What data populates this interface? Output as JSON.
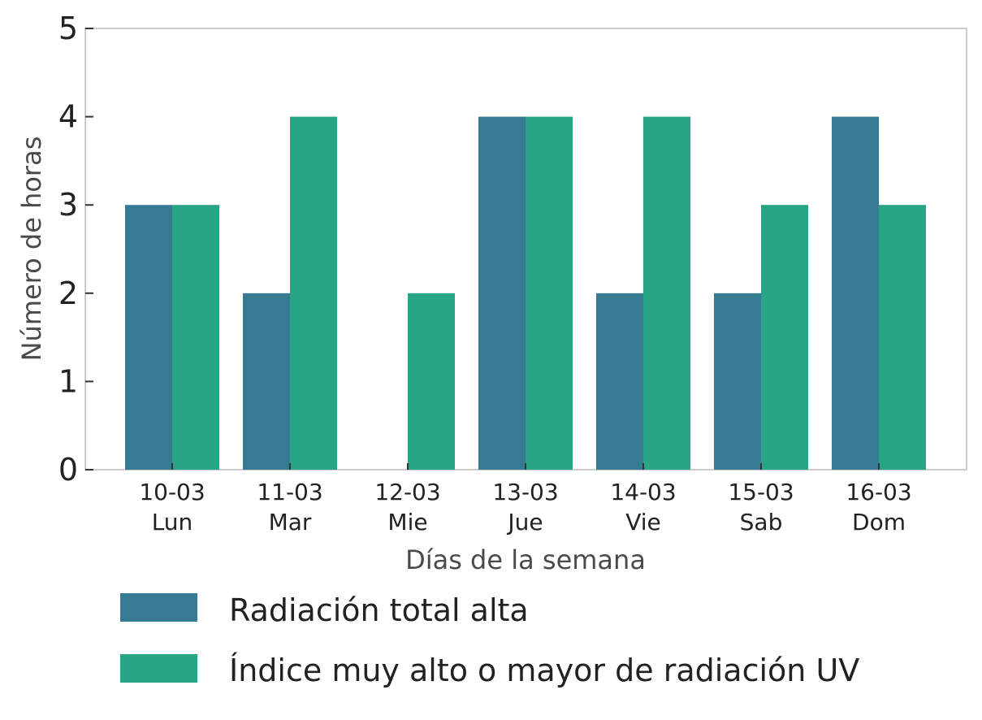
{
  "chart_data": {
    "type": "bar",
    "categories": [
      {
        "date": "10-03",
        "day": "Lun"
      },
      {
        "date": "11-03",
        "day": "Mar"
      },
      {
        "date": "12-03",
        "day": "Mie"
      },
      {
        "date": "13-03",
        "day": "Jue"
      },
      {
        "date": "14-03",
        "day": "Vie"
      },
      {
        "date": "15-03",
        "day": "Sab"
      },
      {
        "date": "16-03",
        "day": "Dom"
      }
    ],
    "series": [
      {
        "name": "Radiación total alta",
        "color": "#377a93",
        "values": [
          3,
          2,
          0,
          4,
          2,
          2,
          4
        ]
      },
      {
        "name": "Índice muy alto o mayor de radiación UV",
        "color": "#27a584",
        "values": [
          3,
          4,
          2,
          4,
          4,
          3,
          3
        ]
      }
    ],
    "xlabel": "Días de la semana",
    "ylabel": "Número de horas",
    "ylim": [
      0,
      5
    ],
    "yticks": [
      "0",
      "1",
      "2",
      "3",
      "4",
      "5"
    ],
    "grid": false,
    "legend_position": "bottom"
  }
}
